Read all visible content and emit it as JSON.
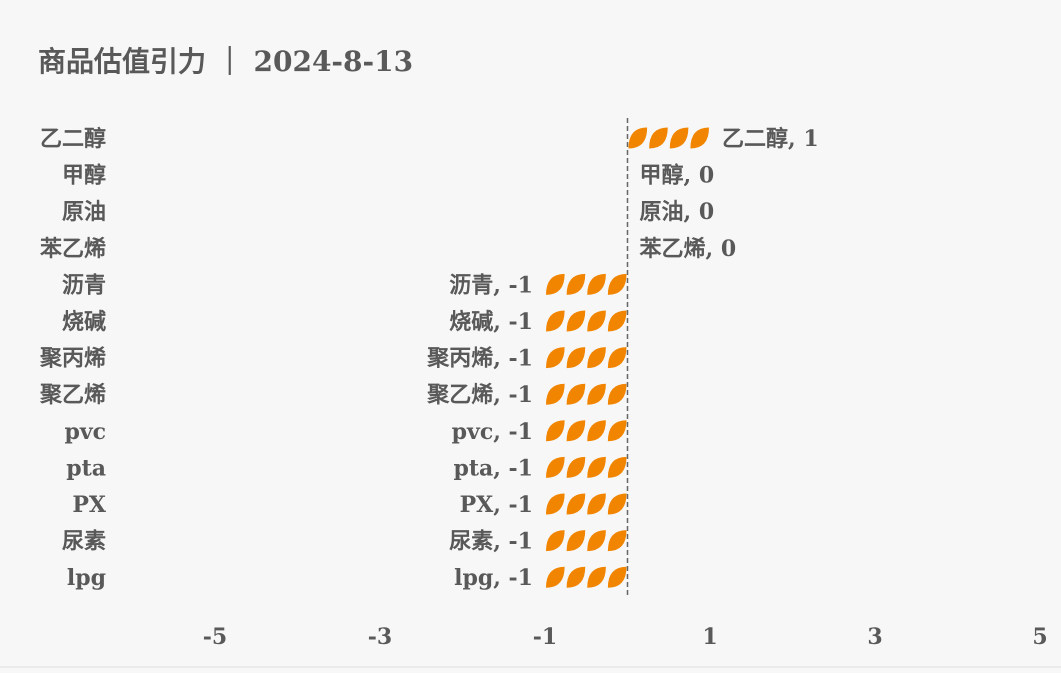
{
  "chart_data": {
    "type": "bar",
    "orientation": "horizontal",
    "style": "pictorial",
    "title": "商品估值引力 ｜ 2024-8-13",
    "categories": [
      "乙二醇",
      "甲醇",
      "原油",
      "苯乙烯",
      "沥青",
      "烧碱",
      "聚丙烯",
      "聚乙烯",
      "pvc",
      "pta",
      "PX",
      "尿素",
      "lpg"
    ],
    "values": [
      1,
      0,
      0,
      0,
      -1,
      -1,
      -1,
      -1,
      -1,
      -1,
      -1,
      -1,
      -1
    ],
    "xlim": [
      -5,
      5
    ],
    "xticks": [
      -5,
      -3,
      -1,
      1,
      3,
      5
    ],
    "grid": false,
    "zero_line": "dashed",
    "data_label_format": "{category}, {value}",
    "colors": {
      "bar": "#f28500",
      "text": "#595959",
      "background": "#f7f7f7"
    },
    "icon": "leaf-icon"
  }
}
